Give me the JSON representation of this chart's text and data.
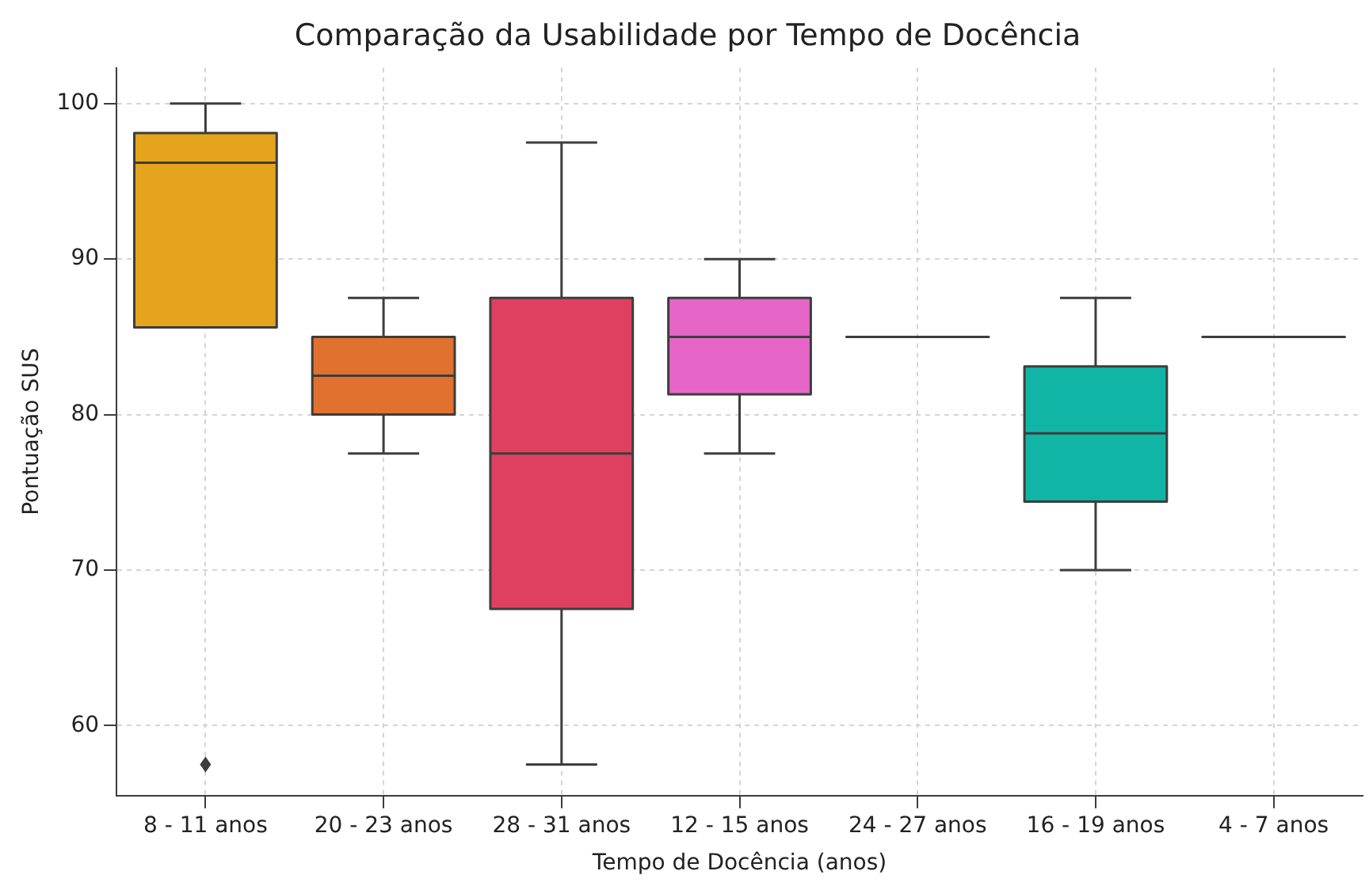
{
  "chart_data": {
    "type": "box",
    "title": "Comparação da Usabilidade por Tempo de Docência",
    "xlabel": "Tempo de Docência (anos)",
    "ylabel": "Pontuação SUS",
    "categories": [
      "8 - 11 anos",
      "20 - 23 anos",
      "28 - 31 anos",
      "12 - 15 anos",
      "24 - 27 anos",
      "16 - 19 anos",
      "4 - 7 anos"
    ],
    "colors": [
      "#e5a41c",
      "#e0712f",
      "#e0405f",
      "#e566c6",
      "#3d3d3d",
      "#11b5a6",
      "#3d3d3d"
    ],
    "boxes": [
      {
        "low": 85.6,
        "q1": 85.6,
        "median": 96.2,
        "q3": 98.1,
        "high": 100,
        "outliers": [
          57.5
        ]
      },
      {
        "low": 77.5,
        "q1": 80,
        "median": 82.5,
        "q3": 85,
        "high": 87.5
      },
      {
        "low": 57.5,
        "q1": 67.5,
        "median": 77.5,
        "q3": 87.5,
        "high": 97.5
      },
      {
        "low": 77.5,
        "q1": 81.3,
        "median": 85,
        "q3": 87.5,
        "high": 90
      },
      {
        "low": 85,
        "q1": 85,
        "median": 85,
        "q3": 85,
        "high": 85
      },
      {
        "low": 70,
        "q1": 74.4,
        "median": 78.8,
        "q3": 83.1,
        "high": 87.5
      },
      {
        "low": 85,
        "q1": 85,
        "median": 85,
        "q3": 85,
        "high": 85
      }
    ],
    "ylim": [
      55.5,
      102.3
    ],
    "yticks": [
      60,
      70,
      80,
      90,
      100
    ],
    "grid": true,
    "legend": false
  }
}
